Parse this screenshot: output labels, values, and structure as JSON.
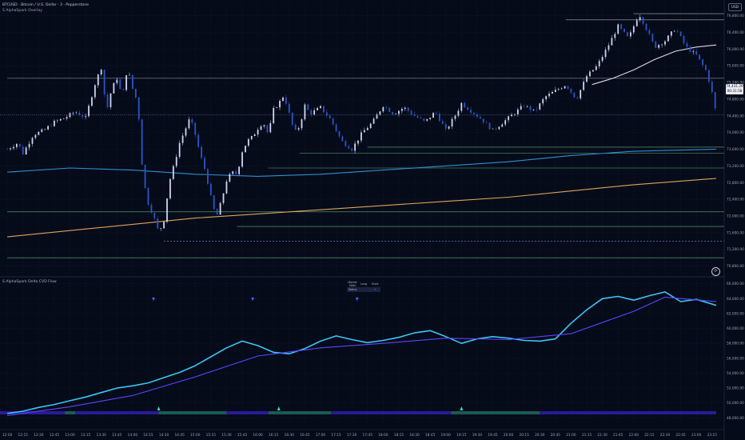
{
  "header": {
    "symbol_line": "BTCUSD · Bitcoin / U.S. Dollar · 3 · Pepperstone",
    "overlay_line": "S AlphaSpark Overlay",
    "currency_badge": "USD"
  },
  "lower_pane": {
    "title": "S AlphaSpark Delta CVD Flow",
    "table": {
      "headers": [
        "Market State",
        "Long",
        "Short"
      ],
      "row": [
        "Status",
        "",
        "✓"
      ]
    }
  },
  "price_axis": {
    "labels": [
      "76,800.00",
      "76,400.00",
      "76,000.00",
      "75,600.00",
      "75,200.00",
      "74,800.00",
      "74,400.00",
      "74,000.00",
      "73,600.00",
      "73,200.00",
      "72,800.00",
      "72,400.00",
      "72,000.00",
      "71,600.00",
      "71,200.00",
      "70,800.00"
    ],
    "values": [
      76800,
      76400,
      76000,
      75600,
      75200,
      74800,
      74400,
      74000,
      73600,
      73200,
      72800,
      72400,
      72000,
      71600,
      71200,
      70800
    ],
    "current_price_label": "74,431.29",
    "current_price_sub": "00:31:58",
    "current_price": 74431
  },
  "cvd_axis": {
    "labels": [
      "66,000.00",
      "64,000.00",
      "62,000.00",
      "60,000.00",
      "58,000.00",
      "56,000.00",
      "54,000.00",
      "52,000.00",
      "50,000.00",
      "48,000.00"
    ],
    "values": [
      66000,
      64000,
      62000,
      60000,
      58000,
      56000,
      54000,
      52000,
      50000,
      48000
    ]
  },
  "time_axis": {
    "labels": [
      "12:00",
      "12:15",
      "12:30",
      "12:45",
      "13:00",
      "13:15",
      "13:30",
      "13:45",
      "14:00",
      "14:15",
      "14:30",
      "14:45",
      "15:00",
      "15:15",
      "15:30",
      "15:45",
      "16:00",
      "16:15",
      "16:30",
      "16:45",
      "17:00",
      "17:15",
      "17:30",
      "17:45",
      "18:00",
      "18:15",
      "18:30",
      "18:45",
      "19:00",
      "19:15",
      "19:30",
      "19:45",
      "20:00",
      "20:15",
      "20:30",
      "20:45",
      "21:00",
      "21:15",
      "21:30",
      "21:45",
      "22:00",
      "22:15",
      "22:30",
      "22:45",
      "23:00",
      "23:15"
    ]
  },
  "chart_data": [
    {
      "type": "candlestick",
      "title": "BTCUSD · Bitcoin / U.S. Dollar · 3 · Pepperstone",
      "ylim": [
        70600,
        77100
      ],
      "x_range": [
        "12:00",
        "23:19"
      ],
      "price_path": [
        [
          "12:00",
          73600
        ],
        [
          "12:10",
          73750
        ],
        [
          "12:15",
          73500
        ],
        [
          "12:25",
          73950
        ],
        [
          "12:35",
          74050
        ],
        [
          "12:45",
          74250
        ],
        [
          "12:55",
          74350
        ],
        [
          "13:05",
          74500
        ],
        [
          "13:15",
          74350
        ],
        [
          "13:20",
          74800
        ],
        [
          "13:25",
          75250
        ],
        [
          "13:30",
          75550
        ],
        [
          "13:35",
          74500
        ],
        [
          "13:40",
          75050
        ],
        [
          "13:45",
          75300
        ],
        [
          "13:50",
          74850
        ],
        [
          "13:55",
          75550
        ],
        [
          "14:00",
          75050
        ],
        [
          "14:05",
          74700
        ],
        [
          "14:10",
          72900
        ],
        [
          "14:15",
          72300
        ],
        [
          "14:20",
          72000
        ],
        [
          "14:25",
          71600
        ],
        [
          "14:30",
          71900
        ],
        [
          "14:35",
          72800
        ],
        [
          "14:40",
          73250
        ],
        [
          "14:45",
          73750
        ],
        [
          "14:50",
          74050
        ],
        [
          "14:55",
          74350
        ],
        [
          "15:00",
          73950
        ],
        [
          "15:05",
          73450
        ],
        [
          "15:10",
          73050
        ],
        [
          "15:15",
          72450
        ],
        [
          "15:20",
          71950
        ],
        [
          "15:25",
          72350
        ],
        [
          "15:30",
          72850
        ],
        [
          "15:35",
          73050
        ],
        [
          "15:40",
          73000
        ],
        [
          "15:45",
          73550
        ],
        [
          "15:50",
          73800
        ],
        [
          "15:55",
          73900
        ],
        [
          "16:00",
          74100
        ],
        [
          "16:05",
          74250
        ],
        [
          "16:10",
          73950
        ],
        [
          "16:15",
          74550
        ],
        [
          "16:20",
          74700
        ],
        [
          "16:25",
          74900
        ],
        [
          "16:30",
          74450
        ],
        [
          "16:35",
          74000
        ],
        [
          "16:40",
          74150
        ],
        [
          "16:45",
          74650
        ],
        [
          "16:50",
          74450
        ],
        [
          "17:00",
          74600
        ],
        [
          "17:10",
          74300
        ],
        [
          "17:20",
          73800
        ],
        [
          "17:30",
          73600
        ],
        [
          "17:40",
          74000
        ],
        [
          "17:50",
          74250
        ],
        [
          "18:00",
          74650
        ],
        [
          "18:10",
          74450
        ],
        [
          "18:20",
          74600
        ],
        [
          "18:30",
          74400
        ],
        [
          "18:40",
          74250
        ],
        [
          "18:50",
          74500
        ],
        [
          "19:00",
          74050
        ],
        [
          "19:10",
          74450
        ],
        [
          "19:15",
          74700
        ],
        [
          "19:25",
          74500
        ],
        [
          "19:35",
          74300
        ],
        [
          "19:45",
          74050
        ],
        [
          "19:55",
          74250
        ],
        [
          "20:05",
          74450
        ],
        [
          "20:15",
          74650
        ],
        [
          "20:25",
          74500
        ],
        [
          "20:35",
          74850
        ],
        [
          "20:45",
          75000
        ],
        [
          "20:55",
          75150
        ],
        [
          "21:05",
          74800
        ],
        [
          "21:15",
          75350
        ],
        [
          "21:25",
          75600
        ],
        [
          "21:35",
          76050
        ],
        [
          "21:45",
          76550
        ],
        [
          "21:55",
          76250
        ],
        [
          "22:05",
          76850
        ],
        [
          "22:10",
          76600
        ],
        [
          "22:20",
          76050
        ],
        [
          "22:30",
          76200
        ],
        [
          "22:40",
          76500
        ],
        [
          "22:50",
          76050
        ],
        [
          "23:00",
          75850
        ],
        [
          "23:10",
          75450
        ],
        [
          "23:15",
          74950
        ],
        [
          "23:19",
          74431
        ]
      ],
      "moving_averages": [
        {
          "name": "",
          "color": "#2e8fd0",
          "points": [
            [
              "12:00",
              73050
            ],
            [
              "13:00",
              73150
            ],
            [
              "14:00",
              73100
            ],
            [
              "15:00",
              73000
            ],
            [
              "16:00",
              72950
            ],
            [
              "17:00",
              73000
            ],
            [
              "18:00",
              73100
            ],
            [
              "19:00",
              73200
            ],
            [
              "20:00",
              73300
            ],
            [
              "21:00",
              73450
            ],
            [
              "22:00",
              73550
            ],
            [
              "23:19",
              73600
            ]
          ]
        },
        {
          "name": "",
          "color": "#dba45a",
          "points": [
            [
              "12:00",
              71500
            ],
            [
              "13:00",
              71650
            ],
            [
              "14:00",
              71800
            ],
            [
              "15:00",
              71950
            ],
            [
              "16:00",
              72050
            ],
            [
              "17:00",
              72150
            ],
            [
              "18:00",
              72250
            ],
            [
              "19:00",
              72350
            ],
            [
              "20:00",
              72450
            ],
            [
              "21:00",
              72600
            ],
            [
              "22:00",
              72750
            ],
            [
              "23:19",
              72900
            ]
          ]
        },
        {
          "name": "",
          "color": "#d8dce6",
          "points": [
            [
              "21:20",
              75150
            ],
            [
              "21:40",
              75300
            ],
            [
              "22:00",
              75500
            ],
            [
              "22:20",
              75750
            ],
            [
              "22:40",
              75950
            ],
            [
              "23:00",
              76050
            ],
            [
              "23:19",
              76100
            ]
          ]
        }
      ],
      "horizontal_levels": [
        {
          "price": 76850,
          "style": "solid",
          "color": "#c7cbd6",
          "from": "22:00"
        },
        {
          "price": 76700,
          "style": "solid",
          "color": "#c7cbd6",
          "from": "20:55"
        },
        {
          "price": 75300,
          "style": "solid",
          "color": "#c7cbd6",
          "from": "12:00"
        },
        {
          "price": 73650,
          "style": "solid",
          "color": "#6fd08c",
          "from": "17:45"
        },
        {
          "price": 73500,
          "style": "solid",
          "color": "#6fd08c",
          "from": "16:40"
        },
        {
          "price": 73150,
          "style": "solid",
          "color": "#6fd08c",
          "from": "16:10"
        },
        {
          "price": 72100,
          "style": "solid",
          "color": "#6fd08c",
          "from": "12:00"
        },
        {
          "price": 71750,
          "style": "solid",
          "color": "#6fd08c",
          "from": "15:40"
        },
        {
          "price": 71400,
          "style": "dashed",
          "color": "#8fa8ff",
          "from": "14:30"
        },
        {
          "price": 71000,
          "style": "solid",
          "color": "#6fd08c",
          "from": "12:00"
        }
      ]
    },
    {
      "type": "line",
      "title": "S AlphaSpark Delta CVD Flow",
      "ylim": [
        47500,
        66500
      ],
      "series": [
        {
          "name": "",
          "color": "#3bc4f2",
          "points": [
            [
              "12:00",
              48600
            ],
            [
              "12:15",
              48900
            ],
            [
              "12:30",
              49400
            ],
            [
              "12:45",
              49800
            ],
            [
              "13:00",
              50300
            ],
            [
              "13:15",
              50800
            ],
            [
              "13:30",
              51400
            ],
            [
              "13:45",
              52000
            ],
            [
              "14:00",
              52300
            ],
            [
              "14:15",
              52700
            ],
            [
              "14:30",
              53400
            ],
            [
              "14:45",
              54100
            ],
            [
              "15:00",
              55000
            ],
            [
              "15:15",
              56200
            ],
            [
              "15:30",
              57400
            ],
            [
              "15:45",
              58300
            ],
            [
              "16:00",
              57700
            ],
            [
              "16:15",
              56800
            ],
            [
              "16:30",
              56600
            ],
            [
              "16:45",
              57300
            ],
            [
              "17:00",
              58300
            ],
            [
              "17:15",
              59000
            ],
            [
              "17:30",
              58500
            ],
            [
              "17:45",
              58100
            ],
            [
              "18:00",
              58400
            ],
            [
              "18:15",
              58800
            ],
            [
              "18:30",
              59400
            ],
            [
              "18:45",
              59700
            ],
            [
              "19:00",
              58900
            ],
            [
              "19:15",
              58000
            ],
            [
              "19:30",
              58600
            ],
            [
              "19:45",
              58900
            ],
            [
              "20:00",
              58700
            ],
            [
              "20:15",
              58400
            ],
            [
              "20:30",
              58300
            ],
            [
              "20:45",
              58600
            ],
            [
              "21:00",
              60700
            ],
            [
              "21:15",
              62500
            ],
            [
              "21:30",
              64000
            ],
            [
              "21:45",
              64300
            ],
            [
              "22:00",
              63800
            ],
            [
              "22:15",
              64400
            ],
            [
              "22:30",
              64900
            ],
            [
              "22:45",
              63600
            ],
            [
              "23:00",
              63900
            ],
            [
              "23:19",
              63100
            ]
          ]
        },
        {
          "name": "",
          "color": "#5b46ff",
          "points": [
            [
              "12:00",
              48300
            ],
            [
              "13:00",
              49500
            ],
            [
              "14:00",
              51000
            ],
            [
              "15:00",
              53500
            ],
            [
              "16:00",
              56300
            ],
            [
              "17:00",
              57400
            ],
            [
              "18:00",
              58000
            ],
            [
              "19:00",
              58700
            ],
            [
              "20:00",
              58500
            ],
            [
              "21:00",
              59300
            ],
            [
              "22:00",
              62300
            ],
            [
              "22:30",
              64200
            ],
            [
              "23:19",
              63600
            ]
          ]
        }
      ],
      "signals": [
        {
          "time": "14:20",
          "type": "down"
        },
        {
          "time": "15:55",
          "type": "down"
        },
        {
          "time": "17:35",
          "type": "down"
        },
        {
          "time": "14:25",
          "type": "up"
        },
        {
          "time": "16:20",
          "type": "up"
        },
        {
          "time": "19:15",
          "type": "up"
        }
      ]
    }
  ],
  "colors": {
    "background": "#060b1a",
    "candle_up": "#cdd6f0",
    "candle_down": "#2b56c8",
    "grid": "#1b2236",
    "bar_neutral": "#2a1a9a",
    "bar_bull": "#1c5a55"
  },
  "icons": {
    "reset": "refresh-icon"
  }
}
